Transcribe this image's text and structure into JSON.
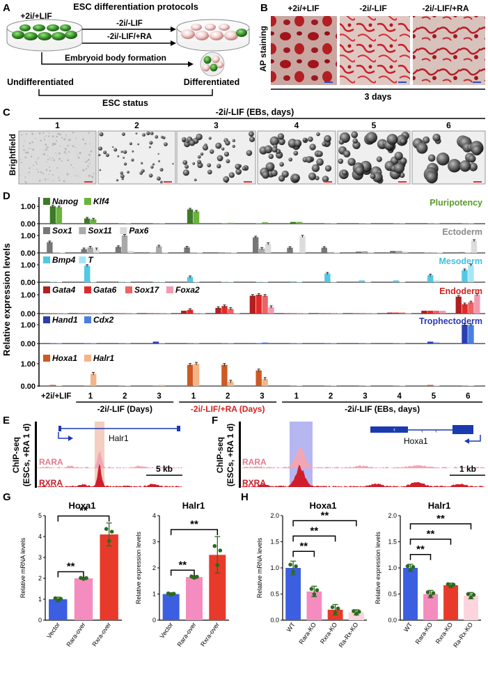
{
  "panels": {
    "A": "A",
    "B": "B",
    "C": "C",
    "D": "D",
    "E": "E",
    "F": "F",
    "G": "G",
    "H": "H"
  },
  "panel_a": {
    "title": "ESC differentiation protocols",
    "condition_start": "+2i/+LIF",
    "arrow1": "-2i/-LIF",
    "arrow2": "-2i/-LIF/+RA",
    "arrow3": "Embryoid body formation",
    "undiff": "Undifferentiated",
    "diff": "Differentiated",
    "status": "ESC status"
  },
  "panel_b": {
    "ylabel": "AP staining",
    "conditions": [
      "+2i/+LIF",
      "-2i/-LIF",
      "-2i/-LIF/+RA"
    ],
    "duration": "3 days"
  },
  "panel_c": {
    "header": "-2i/-LIF (EBs, days)",
    "days": [
      "1",
      "2",
      "3",
      "4",
      "5",
      "6"
    ],
    "ylabel": "Brightfield"
  },
  "panel_d": {
    "ylabel": "Relative expression levels",
    "rows": [
      {
        "genes": [
          "Nanog",
          "Klf4"
        ],
        "label": "Pluripotency",
        "colors": [
          "#3e7a28",
          "#6bb33a"
        ],
        "label_color": "#5a9a2a",
        "ticks": [
          "1.00",
          "0.00"
        ]
      },
      {
        "genes": [
          "Sox1",
          "Sox11",
          "Pax6"
        ],
        "label": "Ectoderm",
        "colors": [
          "#777777",
          "#a9a9a9",
          "#dcdcdc"
        ],
        "label_color": "#8a8a8a",
        "ticks": [
          "1.00",
          "0.00"
        ]
      },
      {
        "genes": [
          "Bmp4",
          "T"
        ],
        "label": "Mesoderm",
        "colors": [
          "#52c8e6",
          "#a6e6f4"
        ],
        "label_color": "#3fbfe0",
        "ticks": [
          "1.00",
          "0.00"
        ]
      },
      {
        "genes": [
          "Gata4",
          "Gata6",
          "Sox17",
          "Foxa2"
        ],
        "label": "Endoderm",
        "colors": [
          "#b11f1f",
          "#e02a2a",
          "#ec6464",
          "#f39ab1"
        ],
        "label_color": "#d42020",
        "ticks": [
          "1.00",
          "0.00"
        ]
      },
      {
        "genes": [
          "Hand1",
          "Cdx2"
        ],
        "label": "Trophectoderm",
        "colors": [
          "#2a3fb0",
          "#4a7fe0"
        ],
        "label_color": "#2a3ab0",
        "ticks": [
          "1.00",
          "0.00"
        ]
      },
      {
        "genes": [
          "Hoxa1",
          "Halr1"
        ],
        "label": "",
        "colors": [
          "#cc5a22",
          "#f4b487"
        ],
        "label_color": "#000",
        "ticks": [
          "1.00",
          "0.00"
        ]
      }
    ],
    "xticks": [
      "+2i/+LIF",
      "1",
      "2",
      "3",
      "1",
      "2",
      "3",
      "1",
      "2",
      "3",
      "4",
      "5",
      "6"
    ],
    "groups": [
      "-2i/-LIF (Days)",
      "-2i/-LIF/+RA (Days)",
      "-2i/-LIF (EBs, days)"
    ],
    "group_colors": [
      "#000000",
      "#d42020",
      "#000000"
    ],
    "group_ranges": [
      [
        1,
        3
      ],
      [
        4,
        6
      ],
      [
        7,
        12
      ]
    ],
    "values": [
      [
        [
          1.0,
          0.95
        ],
        [
          0.3,
          0.25
        ],
        [
          0.02,
          0.02
        ],
        [
          0.02,
          0.02
        ],
        [
          0.82,
          0.7
        ],
        [
          0.02,
          0.05
        ],
        [
          0.02,
          0.08
        ],
        [
          0.1,
          0.1
        ],
        [
          0.02,
          0.02
        ],
        [
          0.02,
          0.02
        ],
        [
          0.02,
          0.02
        ],
        [
          0.02,
          0.02
        ],
        [
          0.02,
          0.02
        ]
      ],
      [
        [
          0.62,
          0.03,
          0.02
        ],
        [
          0.22,
          0.32,
          0.22
        ],
        [
          0.35,
          1.0,
          0.12
        ],
        [
          0.02,
          0.38,
          0.03
        ],
        [
          0.32,
          0.03,
          0.02
        ],
        [
          0.03,
          0.03,
          0.02
        ],
        [
          0.9,
          0.25,
          0.52
        ],
        [
          0.3,
          0.02,
          0.95
        ],
        [
          0.3,
          0.05,
          0.02
        ],
        [
          0.08,
          0.1,
          0.05
        ],
        [
          0.12,
          0.12,
          0.08
        ],
        [
          0.02,
          0.03,
          0.02
        ],
        [
          0.05,
          0.02,
          0.7
        ]
      ],
      [
        [
          0.02,
          0.02
        ],
        [
          0.95,
          0.02
        ],
        [
          0.02,
          0.02
        ],
        [
          0.02,
          0.02
        ],
        [
          0.3,
          0.02
        ],
        [
          0.02,
          0.02
        ],
        [
          0.02,
          0.02
        ],
        [
          0.05,
          0.02
        ],
        [
          0.5,
          0.02
        ],
        [
          0.1,
          0.02
        ],
        [
          0.1,
          0.02
        ],
        [
          0.4,
          0.1
        ],
        [
          0.7,
          0.98
        ]
      ],
      [
        [
          0.02,
          0.02,
          0.02,
          0.02
        ],
        [
          0.02,
          0.02,
          0.02,
          0.02
        ],
        [
          0.02,
          0.02,
          0.02,
          0.02
        ],
        [
          0.02,
          0.02,
          0.02,
          0.02
        ],
        [
          0.15,
          0.2,
          0.02,
          0.02
        ],
        [
          0.3,
          0.4,
          0.25,
          0.02
        ],
        [
          0.95,
          1.0,
          0.95,
          0.35
        ],
        [
          0.02,
          0.02,
          0.02,
          0.02
        ],
        [
          0.02,
          0.02,
          0.02,
          0.02
        ],
        [
          0.02,
          0.02,
          0.02,
          0.02
        ],
        [
          0.05,
          0.05,
          0.05,
          0.02
        ],
        [
          0.15,
          0.15,
          0.15,
          0.15
        ],
        [
          0.9,
          0.5,
          0.6,
          1.0
        ]
      ],
      [
        [
          0.02,
          0.02
        ],
        [
          0.02,
          0.02
        ],
        [
          0.02,
          0.02
        ],
        [
          0.1,
          0.02
        ],
        [
          0.02,
          0.02
        ],
        [
          0.02,
          0.02
        ],
        [
          0.02,
          0.05
        ],
        [
          0.02,
          0.02
        ],
        [
          0.02,
          0.02
        ],
        [
          0.02,
          0.02
        ],
        [
          0.02,
          0.02
        ],
        [
          0.1,
          0.05
        ],
        [
          1.0,
          0.98
        ]
      ],
      [
        [
          0.05,
          0.02
        ],
        [
          0.02,
          0.55
        ],
        [
          0.02,
          0.02
        ],
        [
          0.02,
          0.05
        ],
        [
          0.95,
          1.0
        ],
        [
          0.95,
          0.2
        ],
        [
          0.7,
          0.32
        ],
        [
          0.02,
          0.02
        ],
        [
          0.02,
          0.02
        ],
        [
          0.02,
          0.02
        ],
        [
          0.02,
          0.02
        ],
        [
          0.05,
          0.02
        ],
        [
          0.02,
          0.02
        ]
      ]
    ]
  },
  "panel_e": {
    "gene": "Halr1",
    "track1": "RARA",
    "track2": "RXRA",
    "scale": "5 kb",
    "ylabel1": "ChIP-seq",
    "ylabel2": "(ESCs, +RA 1 d)"
  },
  "panel_f": {
    "gene": "Hoxa1",
    "track1": "RARA",
    "track2": "RXRA",
    "scale": "1 kb",
    "ylabel1": "ChIP-seq",
    "ylabel2": "(ESCs, +RA 1 d)"
  },
  "chart_data": [
    {
      "type": "bar",
      "title": "Hoxa1",
      "ylabel": "Relative mRNA levels",
      "categories": [
        "Vector",
        "Rara-over",
        "Rxra-over"
      ],
      "values": [
        1.0,
        2.0,
        4.1
      ],
      "errors": [
        0.1,
        0.05,
        0.55
      ],
      "ylim": [
        0,
        5
      ],
      "yticks": [
        "0",
        "1",
        "2",
        "3",
        "4",
        "5"
      ],
      "colors": [
        "#3b5fe0",
        "#f58cbf",
        "#e83a2a"
      ],
      "sig": [
        {
          "from": 0,
          "to": 1,
          "label": "**"
        },
        {
          "from": 0,
          "to": 2,
          "label": "**"
        }
      ]
    },
    {
      "type": "bar",
      "title": "Halr1",
      "ylabel": "Relative expression levels",
      "categories": [
        "Vector",
        "Rara-over",
        "Rxra-over"
      ],
      "values": [
        1.0,
        1.65,
        2.5
      ],
      "errors": [
        0.05,
        0.05,
        0.7
      ],
      "ylim": [
        0,
        4
      ],
      "yticks": [
        "0",
        "1",
        "2",
        "3",
        "4"
      ],
      "colors": [
        "#3b5fe0",
        "#f58cbf",
        "#e83a2a"
      ],
      "sig": [
        {
          "from": 0,
          "to": 1,
          "label": "**"
        },
        {
          "from": 0,
          "to": 2,
          "label": "**"
        }
      ]
    },
    {
      "type": "bar",
      "title": "Hoxa1",
      "ylabel": "Relative mRNA levels",
      "categories": [
        "WT",
        "Rara-KO",
        "Rxra-KO",
        "Ra-Rx-KO"
      ],
      "values": [
        1.0,
        0.55,
        0.2,
        0.15
      ],
      "errors": [
        0.13,
        0.1,
        0.1,
        0.05
      ],
      "ylim": [
        0,
        2.0
      ],
      "yticks": [
        "0.0",
        "0.5",
        "1.0",
        "1.5",
        "2.0"
      ],
      "colors": [
        "#3b5fe0",
        "#f58cbf",
        "#e83a2a",
        "#fbd4de"
      ],
      "sig": [
        {
          "from": 0,
          "to": 1,
          "label": "**"
        },
        {
          "from": 0,
          "to": 2,
          "label": "**"
        },
        {
          "from": 0,
          "to": 3,
          "label": "**"
        }
      ]
    },
    {
      "type": "bar",
      "title": "Halr1",
      "ylabel": "Relative expression levels",
      "categories": [
        "WT",
        "Rara-KO",
        "Rxra-KO",
        "Ra-Rx-KO"
      ],
      "values": [
        1.0,
        0.5,
        0.67,
        0.47
      ],
      "errors": [
        0.07,
        0.07,
        0.04,
        0.06
      ],
      "ylim": [
        0,
        2.0
      ],
      "yticks": [
        "0.0",
        "0.5",
        "1.0",
        "1.5",
        "2.0"
      ],
      "colors": [
        "#3b5fe0",
        "#f58cbf",
        "#e83a2a",
        "#fbd4de"
      ],
      "sig": [
        {
          "from": 0,
          "to": 1,
          "label": "**"
        },
        {
          "from": 0,
          "to": 2,
          "label": "**"
        },
        {
          "from": 0,
          "to": 3,
          "label": "**"
        }
      ]
    }
  ]
}
